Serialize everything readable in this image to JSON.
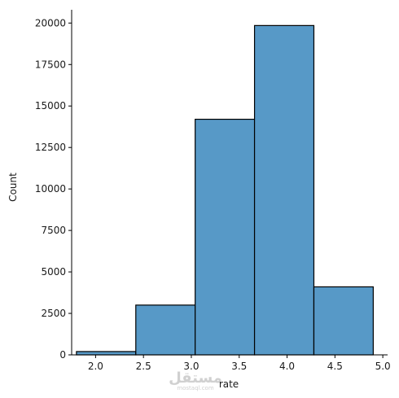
{
  "chart_data": {
    "type": "bar",
    "subtype": "histogram",
    "xlabel": "rate",
    "ylabel": "Count",
    "bins": [
      {
        "x0": 1.8,
        "x1": 2.42,
        "count": 200
      },
      {
        "x0": 2.42,
        "x1": 3.04,
        "count": 3000
      },
      {
        "x0": 3.04,
        "x1": 3.66,
        "count": 14200
      },
      {
        "x0": 3.66,
        "x1": 4.28,
        "count": 19850
      },
      {
        "x0": 4.28,
        "x1": 4.9,
        "count": 4100
      }
    ],
    "xlim": [
      1.75,
      5.05
    ],
    "ylim": [
      0,
      20800
    ],
    "xticks": [
      2.0,
      2.5,
      3.0,
      3.5,
      4.0,
      4.5,
      5.0
    ],
    "xtick_labels": [
      "2.0",
      "2.5",
      "3.0",
      "3.5",
      "4.0",
      "4.5",
      "5.0"
    ],
    "yticks": [
      0,
      2500,
      5000,
      7500,
      10000,
      12500,
      15000,
      17500,
      20000
    ],
    "ytick_labels": [
      "0",
      "2500",
      "5000",
      "7500",
      "10000",
      "12500",
      "15000",
      "17500",
      "20000"
    ],
    "bar_color": "#5799c7",
    "edge_color": "#000000",
    "grid": false,
    "legend": "none",
    "spines": "left-bottom"
  },
  "watermark": {
    "logo_text": "مستقل",
    "site_text": "mostaql.com"
  }
}
